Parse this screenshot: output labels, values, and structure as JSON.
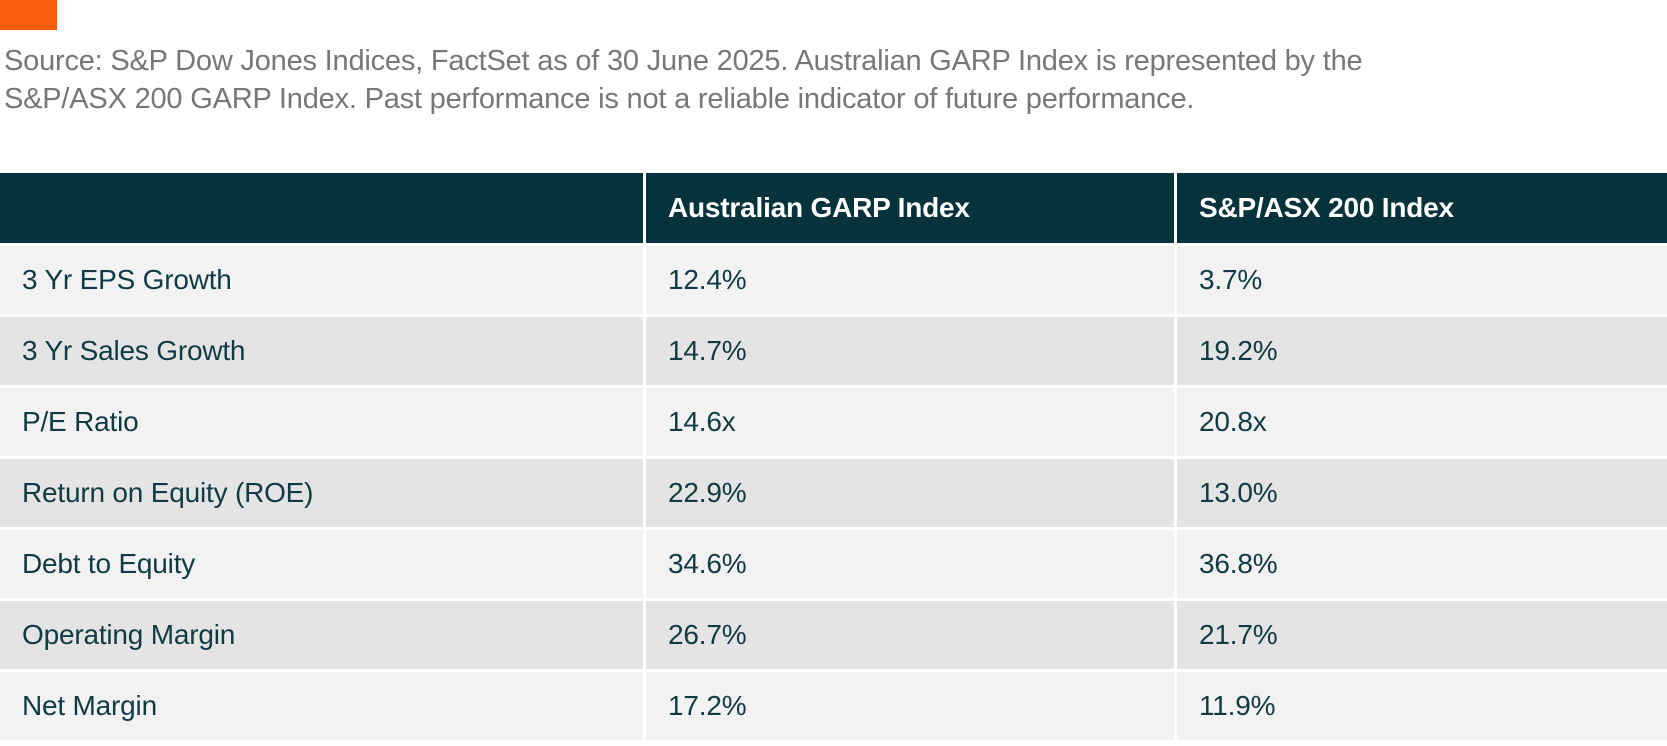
{
  "accent": {
    "color": "#f85c0f"
  },
  "source_note": {
    "line1": "Source: S&P Dow Jones Indices, FactSet as of 30 June 2025. Australian GARP Index is represented by the",
    "line2": "S&P/ASX 200 GARP Index. Past performance is not a reliable indicator of future performance."
  },
  "table": {
    "header": {
      "metric_label": "",
      "garp_label": "Australian GARP Index",
      "asx_label": "S&P/ASX 200 Index"
    },
    "rows": [
      {
        "metric": "3 Yr EPS Growth",
        "garp": "12.4%",
        "asx": "3.7%"
      },
      {
        "metric": "3 Yr Sales Growth",
        "garp": "14.7%",
        "asx": "19.2%"
      },
      {
        "metric": "P/E Ratio",
        "garp": "14.6x",
        "asx": "20.8x"
      },
      {
        "metric": "Return on Equity (ROE)",
        "garp": "22.9%",
        "asx": "13.0%"
      },
      {
        "metric": "Debt to Equity",
        "garp": "34.6%",
        "asx": "36.8%"
      },
      {
        "metric": "Operating Margin",
        "garp": "26.7%",
        "asx": "21.7%"
      },
      {
        "metric": "Net Margin",
        "garp": "17.2%",
        "asx": "11.9%"
      }
    ],
    "colors": {
      "header_bg": "#05323b",
      "row_light": "#f2f2f2",
      "row_dark": "#e4e4e4",
      "cell_text": "#103b44",
      "source_text": "#75787b",
      "accent": "#f85c0f"
    }
  }
}
